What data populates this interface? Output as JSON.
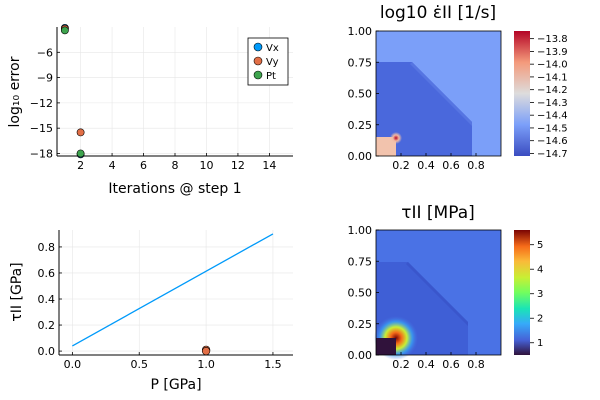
{
  "colors": {
    "series_vx": "#009AFA",
    "series_vy": "#E26F46",
    "series_pt": "#3EA44E",
    "line": "#009AFA",
    "grid": "#e6e6e6"
  },
  "chart_data": [
    {
      "id": "error",
      "type": "scatter",
      "xlabel": "Iterations @ step 1",
      "ylabel": "log₁₀ error",
      "xlim": [
        0.5,
        15.5
      ],
      "ylim": [
        -18.3,
        -3.0
      ],
      "xticks": [
        2,
        4,
        6,
        8,
        10,
        12,
        14
      ],
      "yticks": [
        -6,
        -9,
        -12,
        -15,
        -18
      ],
      "grid": true,
      "legend_position": "top-right",
      "series": [
        {
          "name": "Vx",
          "x": [
            1,
            2
          ],
          "y": [
            -3.1,
            -18.1
          ]
        },
        {
          "name": "Vy",
          "x": [
            1,
            2
          ],
          "y": [
            -3.2,
            -15.5
          ]
        },
        {
          "name": "Pt",
          "x": [
            1,
            2
          ],
          "y": [
            -3.4,
            -18.0
          ]
        }
      ]
    },
    {
      "id": "strainrate",
      "type": "heatmap",
      "title": "log10 ε̇II [1/s]",
      "xlim": [
        0,
        1
      ],
      "ylim": [
        0,
        1
      ],
      "xticks": [
        "0.2",
        "0.4",
        "0.6",
        "0.8"
      ],
      "yticks": [
        "0.00",
        "0.25",
        "0.50",
        "0.75",
        "1.00"
      ],
      "colorbar_ticks": [
        "-13.8",
        "-13.9",
        "-14.0",
        "-14.1",
        "-14.2",
        "-14.3",
        "-14.4",
        "-14.5",
        "-14.6",
        "-14.7"
      ],
      "colorbar_range": [
        -14.72,
        -13.74
      ],
      "colormap": "coolwarm"
    },
    {
      "id": "stress",
      "type": "line",
      "xlabel": "P [GPa]",
      "ylabel": "τII [GPa]",
      "xlim": [
        -0.1,
        1.65
      ],
      "ylim": [
        -0.03,
        0.93
      ],
      "xticks": [
        "0.0",
        "0.5",
        "1.0",
        "1.5"
      ],
      "yticks": [
        "0.0",
        "0.2",
        "0.4",
        "0.6",
        "0.8"
      ],
      "grid": true,
      "line": {
        "x": [
          0,
          1.5
        ],
        "y": [
          0.04,
          0.9
        ]
      },
      "points": {
        "x": [
          1.0,
          1.0,
          1.0
        ],
        "y": [
          0.005,
          0.01,
          0.0
        ]
      }
    },
    {
      "id": "stressmap",
      "type": "heatmap",
      "title": "τII [MPa]",
      "xlim": [
        0,
        1
      ],
      "ylim": [
        0,
        1
      ],
      "xticks": [
        "0.2",
        "0.4",
        "0.6",
        "0.8"
      ],
      "yticks": [
        "0.00",
        "0.25",
        "0.50",
        "0.75",
        "1.00"
      ],
      "colorbar_ticks": [
        "1",
        "2",
        "3",
        "4",
        "5"
      ],
      "colorbar_range": [
        0.5,
        5.6
      ],
      "colormap": "turbo"
    }
  ]
}
